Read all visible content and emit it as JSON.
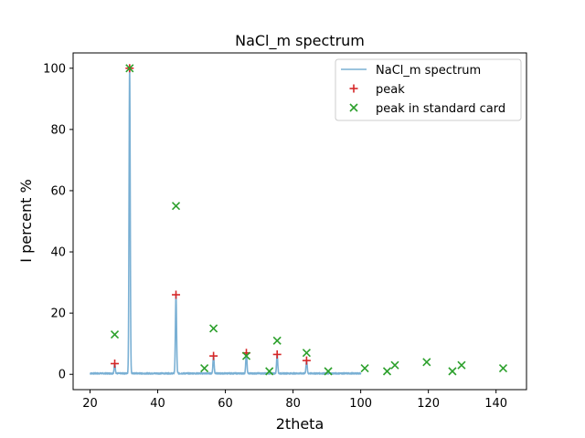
{
  "chart_data": {
    "type": "line",
    "title": "NaCl_m spectrum",
    "xlabel": "2theta",
    "ylabel": "I percent %",
    "xlim": [
      15,
      149
    ],
    "ylim": [
      -5,
      105
    ],
    "xticks": [
      20,
      40,
      60,
      80,
      100,
      120,
      140
    ],
    "yticks": [
      0,
      20,
      40,
      60,
      80,
      100
    ],
    "grid": false,
    "legend_position": "top-right",
    "colors": {
      "spectrum": "#7ab0d4",
      "peak": "#d62728",
      "standard": "#2ca02c"
    },
    "series": [
      {
        "name": "NaCl_m spectrum",
        "kind": "line",
        "x_range": [
          20,
          100
        ],
        "baseline": 0.3,
        "peaks": [
          {
            "x": 27.3,
            "y": 3.5
          },
          {
            "x": 31.7,
            "y": 100
          },
          {
            "x": 45.4,
            "y": 26
          },
          {
            "x": 56.5,
            "y": 6
          },
          {
            "x": 66.2,
            "y": 7
          },
          {
            "x": 75.3,
            "y": 6.5
          },
          {
            "x": 84.0,
            "y": 4.5
          }
        ]
      },
      {
        "name": "peak",
        "kind": "marker-plus",
        "points": [
          {
            "x": 27.3,
            "y": 3.5
          },
          {
            "x": 31.7,
            "y": 100
          },
          {
            "x": 45.4,
            "y": 26
          },
          {
            "x": 56.5,
            "y": 6
          },
          {
            "x": 66.2,
            "y": 7
          },
          {
            "x": 75.3,
            "y": 6.5
          },
          {
            "x": 84.0,
            "y": 4.5
          }
        ]
      },
      {
        "name": "peak in standard card",
        "kind": "marker-x",
        "points": [
          {
            "x": 27.3,
            "y": 13
          },
          {
            "x": 31.7,
            "y": 100
          },
          {
            "x": 45.4,
            "y": 55
          },
          {
            "x": 53.8,
            "y": 2
          },
          {
            "x": 56.5,
            "y": 15
          },
          {
            "x": 66.2,
            "y": 6
          },
          {
            "x": 73.0,
            "y": 1
          },
          {
            "x": 75.3,
            "y": 11
          },
          {
            "x": 84.0,
            "y": 7
          },
          {
            "x": 90.4,
            "y": 1
          },
          {
            "x": 101.2,
            "y": 2
          },
          {
            "x": 107.8,
            "y": 1
          },
          {
            "x": 110.1,
            "y": 3
          },
          {
            "x": 119.5,
            "y": 4
          },
          {
            "x": 127.1,
            "y": 1
          },
          {
            "x": 129.8,
            "y": 3
          },
          {
            "x": 142.1,
            "y": 2
          }
        ]
      }
    ]
  }
}
